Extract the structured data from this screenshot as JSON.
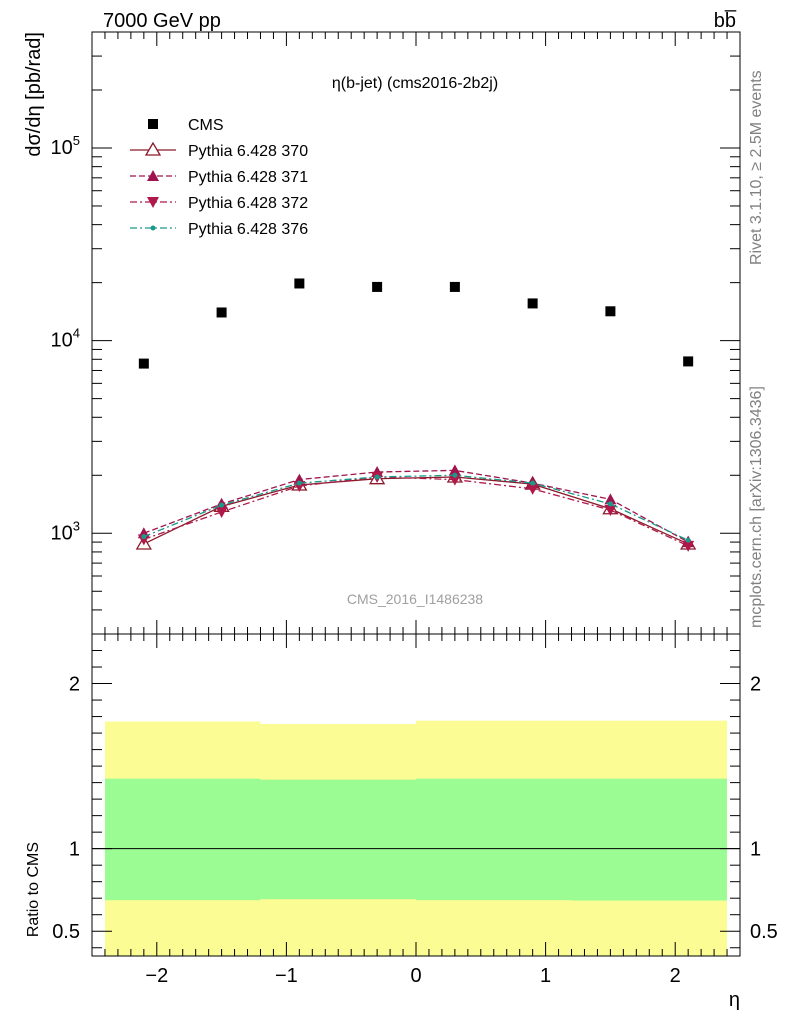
{
  "header": {
    "energy_label": "7000 GeV pp",
    "process_label": "bb̅"
  },
  "side_labels": {
    "rivet": "Rivet 3.1.10, ≥ 2.5M events",
    "mcplots": "mcplots.cern.ch [arXiv:1306.3436]"
  },
  "chart_data": [
    {
      "type": "scatter",
      "title": "η(b-jet) (cms2016-2b2j)",
      "watermark": "CMS_2016_I1486238",
      "ylabel": "dσ/dη [pb/rad]",
      "xlabel": "",
      "xlim": [
        -2.5,
        2.5
      ],
      "ylim": [
        300,
        400000
      ],
      "yscale": "log",
      "y_tick_labels": [
        "10^3",
        "10^4",
        "10^5"
      ],
      "legend_placement": "top-left",
      "series": [
        {
          "name": "CMS",
          "color": "#000000",
          "marker": "square",
          "line": "none",
          "x": [
            -2.1,
            -1.5,
            -0.9,
            -0.3,
            0.3,
            0.9,
            1.5,
            2.1
          ],
          "values": [
            7600,
            14000,
            19800,
            19000,
            19000,
            15600,
            14200,
            7800
          ]
        },
        {
          "name": "Pythia 6.428 370",
          "color": "#8b1a2a",
          "marker": "triangle-up-open",
          "line": "solid",
          "x": [
            -2.1,
            -1.5,
            -0.9,
            -0.3,
            0.3,
            0.9,
            1.5,
            2.1
          ],
          "values": [
            880,
            1380,
            1780,
            1920,
            1960,
            1800,
            1340,
            880
          ]
        },
        {
          "name": "Pythia 6.428 371",
          "color": "#a0144e",
          "marker": "triangle-up",
          "line": "dashed",
          "x": [
            -2.1,
            -1.5,
            -0.9,
            -0.3,
            0.3,
            0.9,
            1.5,
            2.1
          ],
          "values": [
            1000,
            1420,
            1900,
            2080,
            2120,
            1820,
            1500,
            900
          ]
        },
        {
          "name": "Pythia 6.428 372",
          "color": "#b0184a",
          "marker": "triangle-down",
          "line": "dashdot",
          "x": [
            -2.1,
            -1.5,
            -0.9,
            -0.3,
            0.3,
            0.9,
            1.5,
            2.1
          ],
          "values": [
            930,
            1290,
            1760,
            1960,
            1900,
            1700,
            1320,
            860
          ]
        },
        {
          "name": "Pythia 6.428 376",
          "color": "#1a9a8a",
          "marker": "dot",
          "line": "dashdot",
          "x": [
            -2.1,
            -1.5,
            -0.9,
            -0.3,
            0.3,
            0.9,
            1.5,
            2.1
          ],
          "values": [
            960,
            1400,
            1820,
            1960,
            2000,
            1820,
            1420,
            920
          ]
        }
      ]
    },
    {
      "type": "area",
      "ylabel": "Ratio to CMS",
      "xlabel": "η",
      "xlim": [
        -2.5,
        2.5
      ],
      "ylim": [
        0.35,
        2.3
      ],
      "y_tick_labels": [
        "0.5",
        "1",
        "2"
      ],
      "x_tick_labels": [
        "−2",
        "−1",
        "0",
        "1",
        "2"
      ],
      "reference_line": 1,
      "bins": [
        {
          "xlow": -2.4,
          "xhigh": -1.2,
          "inner": [
            0.688,
            1.424
          ],
          "outer": [
            0.35,
            1.77
          ]
        },
        {
          "xlow": -1.2,
          "xhigh": 0.0,
          "inner": [
            0.694,
            1.418
          ],
          "outer": [
            0.35,
            1.755
          ]
        },
        {
          "xlow": 0.0,
          "xhigh": 1.2,
          "inner": [
            0.688,
            1.424
          ],
          "outer": [
            0.35,
            1.775
          ]
        },
        {
          "xlow": 1.2,
          "xhigh": 2.4,
          "inner": [
            0.686,
            1.424
          ],
          "outer": [
            0.35,
            1.775
          ]
        }
      ],
      "colors": {
        "inner": "#9cfc94",
        "outer": "#fcfc94"
      }
    }
  ]
}
